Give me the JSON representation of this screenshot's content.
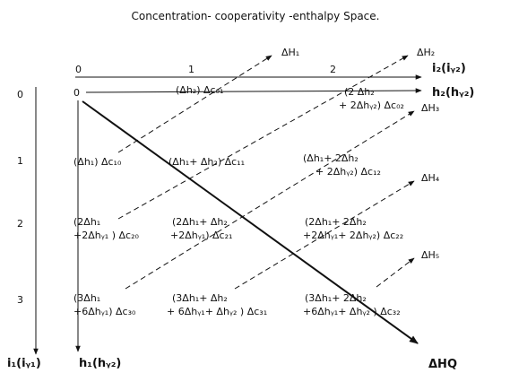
{
  "title": "Concentration- cooperativity -enthalpy Space.",
  "top_axis": {
    "ticks": [
      "0",
      "1",
      "2"
    ],
    "label_i": "i₂(iᵧ₂)",
    "label_h": "h₂(hᵧ₂)"
  },
  "left_axis": {
    "ticks": [
      "0",
      "1",
      "2",
      "3"
    ],
    "label_i": "i₁(iᵧ₁)",
    "label_h": "h₁(hᵧ₂)"
  },
  "origin": "0",
  "cells": {
    "c01": [
      "(Δh₂) Δc₀₁"
    ],
    "c02": [
      "(2 Δh₂",
      "+ 2Δhᵧ₂) Δc₀₂"
    ],
    "c10": [
      "(Δh₁) Δc₁₀"
    ],
    "c11": [
      "(Δh₁+ Δh₂) Δc₁₁"
    ],
    "c12": [
      "(Δh₁+ 2Δh₂",
      "+ 2Δhᵧ₂) Δc₁₂"
    ],
    "c20": [
      "(2Δh₁",
      "+2Δhᵧ₁ ) Δc₂₀"
    ],
    "c21": [
      "(2Δh₁+  Δh₂",
      "+2Δhᵧ₁) Δc₂₁"
    ],
    "c22": [
      "(2Δh₁+ 2Δh₂",
      "+2Δhᵧ₁+ 2Δhᵧ₂) Δc₂₂"
    ],
    "c30": [
      "(3Δh₁",
      "+6Δhᵧ₁) Δc₃₀"
    ],
    "c31": [
      "(3Δh₁+ Δh₂",
      "+ 6Δhᵧ₁+ Δhᵧ₂ ) Δc₃₁"
    ],
    "c32": [
      "(3Δh₁+ 2Δh₂",
      "+6Δhᵧ₁+ Δhᵧ₂ ) Δc₃₂"
    ]
  },
  "enthalpies": [
    "ΔH₁",
    "ΔH₂",
    "ΔH₃",
    "ΔH₄",
    "ΔH₅"
  ],
  "enthalpy_q": "ΔHQ"
}
